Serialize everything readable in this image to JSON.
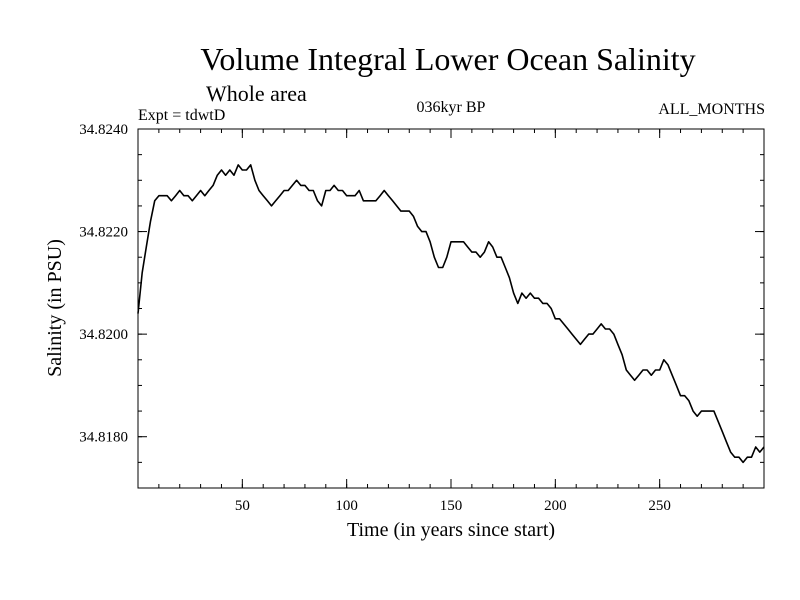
{
  "chart_data": {
    "type": "line",
    "title": "Volume Integral Lower Ocean Salinity",
    "subtitle": "Whole area",
    "annotations": {
      "left": "Expt = tdwtD",
      "center": "036kyr BP",
      "right": "ALL_MONTHS"
    },
    "xlabel": "Time (in years since start)",
    "ylabel": "Salinity (in PSU)",
    "xlim": [
      0,
      300
    ],
    "ylim": [
      34.817,
      34.824
    ],
    "x_ticks": [
      {
        "value": 50,
        "label": "50"
      },
      {
        "value": 100,
        "label": "100"
      },
      {
        "value": 150,
        "label": "150"
      },
      {
        "value": 200,
        "label": "200"
      },
      {
        "value": 250,
        "label": "250"
      }
    ],
    "y_ticks": [
      {
        "value": 34.818,
        "label": "34.8180"
      },
      {
        "value": 34.82,
        "label": "34.8200"
      },
      {
        "value": 34.822,
        "label": "34.8220"
      },
      {
        "value": 34.824,
        "label": "34.8240"
      }
    ],
    "x_minor_step": 10,
    "y_minor_step": 0.0005,
    "grid": false,
    "series": [
      {
        "name": "salinity",
        "color": "#000000",
        "points": [
          [
            0,
            34.8204
          ],
          [
            2,
            34.8212
          ],
          [
            4,
            34.8217
          ],
          [
            6,
            34.8222
          ],
          [
            8,
            34.8226
          ],
          [
            10,
            34.8227
          ],
          [
            12,
            34.8227
          ],
          [
            14,
            34.8227
          ],
          [
            16,
            34.8226
          ],
          [
            18,
            34.8227
          ],
          [
            20,
            34.8228
          ],
          [
            22,
            34.8227
          ],
          [
            24,
            34.8227
          ],
          [
            26,
            34.8226
          ],
          [
            28,
            34.8227
          ],
          [
            30,
            34.8228
          ],
          [
            32,
            34.8227
          ],
          [
            34,
            34.8228
          ],
          [
            36,
            34.8229
          ],
          [
            38,
            34.8231
          ],
          [
            40,
            34.8232
          ],
          [
            42,
            34.8231
          ],
          [
            44,
            34.8232
          ],
          [
            46,
            34.8231
          ],
          [
            48,
            34.8233
          ],
          [
            50,
            34.8232
          ],
          [
            52,
            34.8232
          ],
          [
            54,
            34.8233
          ],
          [
            56,
            34.823
          ],
          [
            58,
            34.8228
          ],
          [
            60,
            34.8227
          ],
          [
            62,
            34.8226
          ],
          [
            64,
            34.8225
          ],
          [
            66,
            34.8226
          ],
          [
            68,
            34.8227
          ],
          [
            70,
            34.8228
          ],
          [
            72,
            34.8228
          ],
          [
            74,
            34.8229
          ],
          [
            76,
            34.823
          ],
          [
            78,
            34.8229
          ],
          [
            80,
            34.8229
          ],
          [
            82,
            34.8228
          ],
          [
            84,
            34.8228
          ],
          [
            86,
            34.8226
          ],
          [
            88,
            34.8225
          ],
          [
            90,
            34.8228
          ],
          [
            92,
            34.8228
          ],
          [
            94,
            34.8229
          ],
          [
            96,
            34.8228
          ],
          [
            98,
            34.8228
          ],
          [
            100,
            34.8227
          ],
          [
            102,
            34.8227
          ],
          [
            104,
            34.8227
          ],
          [
            106,
            34.8228
          ],
          [
            108,
            34.8226
          ],
          [
            110,
            34.8226
          ],
          [
            112,
            34.8226
          ],
          [
            114,
            34.8226
          ],
          [
            116,
            34.8227
          ],
          [
            118,
            34.8228
          ],
          [
            120,
            34.8227
          ],
          [
            122,
            34.8226
          ],
          [
            124,
            34.8225
          ],
          [
            126,
            34.8224
          ],
          [
            128,
            34.8224
          ],
          [
            130,
            34.8224
          ],
          [
            132,
            34.8223
          ],
          [
            134,
            34.8221
          ],
          [
            136,
            34.822
          ],
          [
            138,
            34.822
          ],
          [
            140,
            34.8218
          ],
          [
            142,
            34.8215
          ],
          [
            144,
            34.8213
          ],
          [
            146,
            34.8213
          ],
          [
            148,
            34.8215
          ],
          [
            150,
            34.8218
          ],
          [
            152,
            34.8218
          ],
          [
            154,
            34.8218
          ],
          [
            156,
            34.8218
          ],
          [
            158,
            34.8217
          ],
          [
            160,
            34.8216
          ],
          [
            162,
            34.8216
          ],
          [
            164,
            34.8215
          ],
          [
            166,
            34.8216
          ],
          [
            168,
            34.8218
          ],
          [
            170,
            34.8217
          ],
          [
            172,
            34.8215
          ],
          [
            174,
            34.8215
          ],
          [
            176,
            34.8213
          ],
          [
            178,
            34.8211
          ],
          [
            180,
            34.8208
          ],
          [
            182,
            34.8206
          ],
          [
            184,
            34.8208
          ],
          [
            186,
            34.8207
          ],
          [
            188,
            34.8208
          ],
          [
            190,
            34.8207
          ],
          [
            192,
            34.8207
          ],
          [
            194,
            34.8206
          ],
          [
            196,
            34.8206
          ],
          [
            198,
            34.8205
          ],
          [
            200,
            34.8203
          ],
          [
            202,
            34.8203
          ],
          [
            204,
            34.8202
          ],
          [
            206,
            34.8201
          ],
          [
            208,
            34.82
          ],
          [
            210,
            34.8199
          ],
          [
            212,
            34.8198
          ],
          [
            214,
            34.8199
          ],
          [
            216,
            34.82
          ],
          [
            218,
            34.82
          ],
          [
            220,
            34.8201
          ],
          [
            222,
            34.8202
          ],
          [
            224,
            34.8201
          ],
          [
            226,
            34.8201
          ],
          [
            228,
            34.82
          ],
          [
            230,
            34.8198
          ],
          [
            232,
            34.8196
          ],
          [
            234,
            34.8193
          ],
          [
            236,
            34.8192
          ],
          [
            238,
            34.8191
          ],
          [
            240,
            34.8192
          ],
          [
            242,
            34.8193
          ],
          [
            244,
            34.8193
          ],
          [
            246,
            34.8192
          ],
          [
            248,
            34.8193
          ],
          [
            250,
            34.8193
          ],
          [
            252,
            34.8195
          ],
          [
            254,
            34.8194
          ],
          [
            256,
            34.8192
          ],
          [
            258,
            34.819
          ],
          [
            260,
            34.8188
          ],
          [
            262,
            34.8188
          ],
          [
            264,
            34.8187
          ],
          [
            266,
            34.8185
          ],
          [
            268,
            34.8184
          ],
          [
            270,
            34.8185
          ],
          [
            272,
            34.8185
          ],
          [
            274,
            34.8185
          ],
          [
            276,
            34.8185
          ],
          [
            278,
            34.8183
          ],
          [
            280,
            34.8181
          ],
          [
            282,
            34.8179
          ],
          [
            284,
            34.8177
          ],
          [
            286,
            34.8176
          ],
          [
            288,
            34.8176
          ],
          [
            290,
            34.8175
          ],
          [
            292,
            34.8176
          ],
          [
            294,
            34.8176
          ],
          [
            296,
            34.8178
          ],
          [
            298,
            34.8177
          ],
          [
            300,
            34.8178
          ]
        ]
      }
    ]
  }
}
